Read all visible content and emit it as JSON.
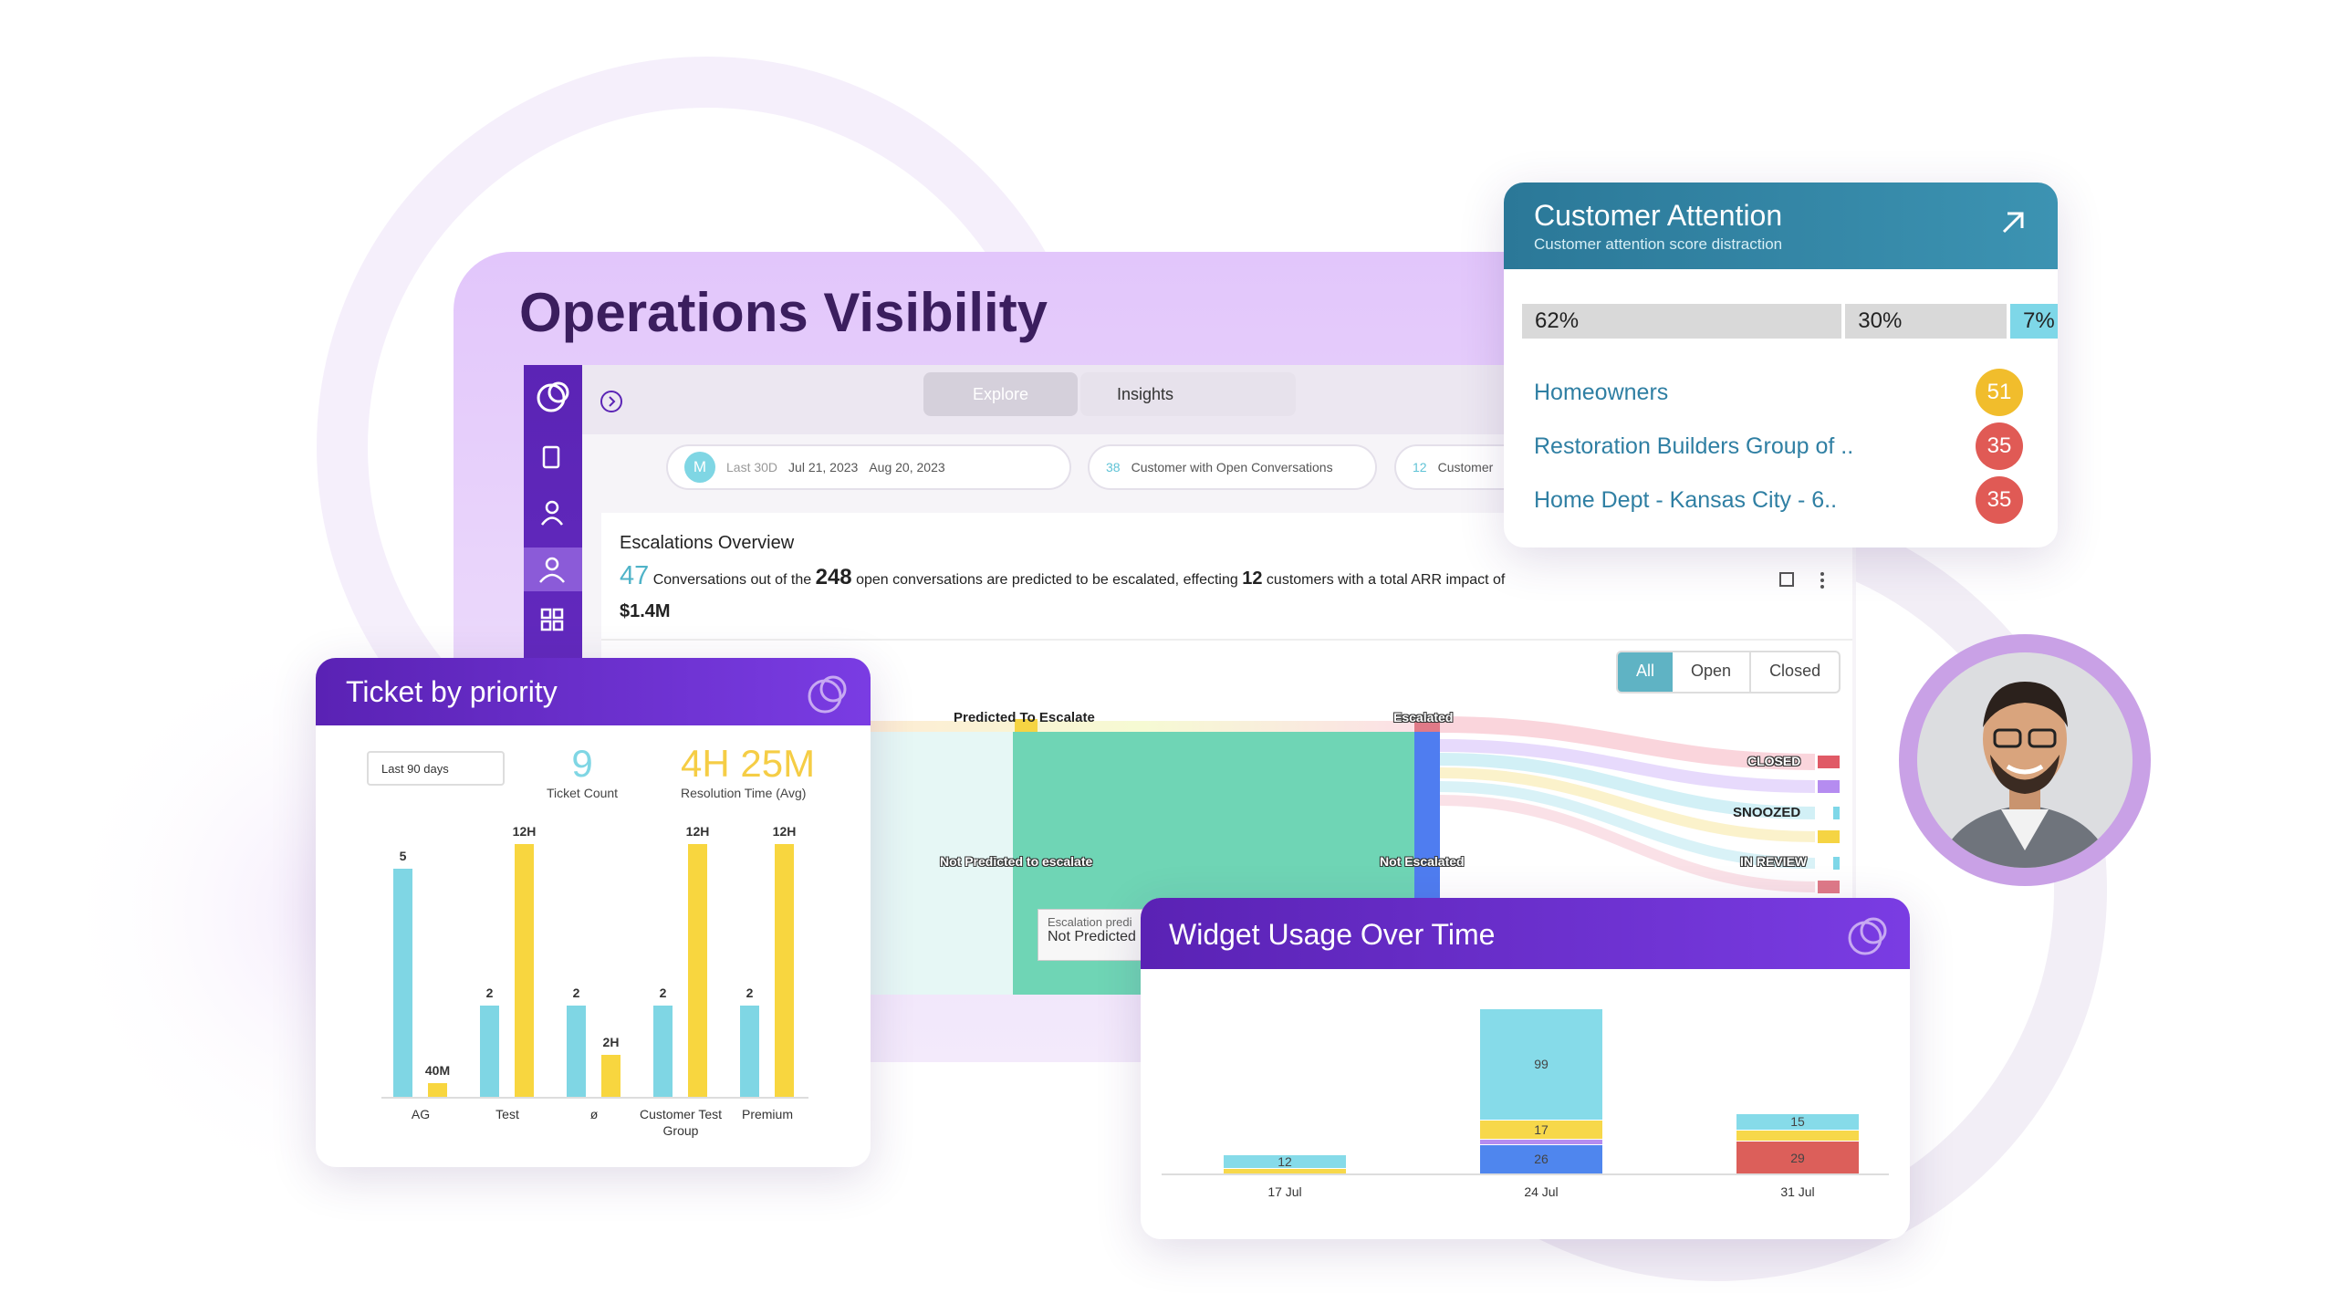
{
  "title": "Operations Visibility",
  "dashboard": {
    "tabs": [
      "Explore",
      "Insights"
    ],
    "filters": {
      "avatar": "M",
      "range": "Last 30D",
      "start": "Jul 21, 2023",
      "end": "Aug 20, 2023"
    },
    "chips": [
      {
        "count": 38,
        "label": "Customer with Open Conversations"
      },
      {
        "count": 12,
        "label": "Customer"
      }
    ],
    "escalations": {
      "title": "Escalations Overview",
      "predicted": 47,
      "text1": "Conversations out of the",
      "open": 248,
      "text2": "open conversations are predicted to be escalated, effecting",
      "customers": 12,
      "text3": "customers with a total ARR impact of",
      "arr": "$1.4M"
    },
    "toggle": [
      "All",
      "Open",
      "Closed"
    ],
    "sankey_labels": [
      "Predicted To Escalate",
      "Escalated",
      "Not Predicted to escalate",
      "Not Escalated",
      "CLOSED",
      "SNOOZED",
      "IN REVIEW"
    ],
    "tooltip": [
      "Escalation predi",
      "Not Predicted"
    ]
  },
  "customer_attention": {
    "title": "Customer Attention",
    "subtitle": "Customer attention score distraction",
    "distribution": {
      "values": [
        62,
        30,
        7
      ],
      "value_labels": [
        "62%",
        "30%",
        "7%"
      ],
      "colors": [
        "#d9d9d9",
        "#d9d9d9",
        "#7ed7e8"
      ]
    },
    "customers": [
      {
        "name": "Homeowners",
        "score": 51,
        "color": "#f1bd2c"
      },
      {
        "name": "Restoration Builders Group of ..",
        "score": 35,
        "color": "#e05a55"
      },
      {
        "name": "Home Dept - Kansas City - 6..",
        "score": 35,
        "color": "#e05a55"
      }
    ]
  },
  "ticket_by_priority": {
    "title": "Ticket by priority",
    "filter": "Last 90 days",
    "kpis": [
      {
        "value": 9,
        "label": "Ticket Count",
        "color": "#7fd6e4"
      },
      {
        "value": "4H 25M",
        "label": "Resolution Time (Avg)",
        "color": "#f5cd45"
      }
    ],
    "chart": {
      "type": "bar",
      "categories": [
        "AG",
        "Test",
        "ø",
        "Customer Test Group",
        "Premium"
      ],
      "series": [
        {
          "color": "#7fd6e4",
          "values": [
            5,
            2,
            2,
            2,
            2
          ]
        },
        {
          "color": "#f8d63f",
          "values": [
            40,
            720,
            120,
            720,
            720
          ],
          "value_labels": [
            "40M",
            "12H",
            "2H",
            "12H",
            "12H"
          ],
          "axis": "y2"
        }
      ],
      "ylim": [
        0,
        6
      ],
      "y2lim": [
        0,
        780
      ]
    }
  },
  "widget_usage": {
    "title": "Widget Usage Over Time",
    "chart": {
      "type": "stacked_bar",
      "categories": [
        "17 Jul",
        "24 Jul",
        "31 Jul"
      ],
      "series": [
        {
          "color": "#4f86ee",
          "values": [
            null,
            26,
            null
          ],
          "value_labels": [
            null,
            "26",
            null
          ]
        },
        {
          "color": "#dc5f5a",
          "values": [
            null,
            null,
            29
          ],
          "value_labels": [
            null,
            null,
            "29"
          ]
        },
        {
          "color": "#b58cf0",
          "values": [
            null,
            5,
            null
          ],
          "value_labels": [
            null,
            null,
            null
          ]
        },
        {
          "color": "#f7d84a",
          "values": [
            5,
            17,
            10
          ],
          "value_labels": [
            null,
            "17",
            null
          ]
        },
        {
          "color": "#86dbe9",
          "values": [
            12,
            99,
            15
          ],
          "value_labels": [
            "12",
            "99",
            "15"
          ]
        }
      ],
      "ylim": [
        0,
        160
      ]
    }
  }
}
